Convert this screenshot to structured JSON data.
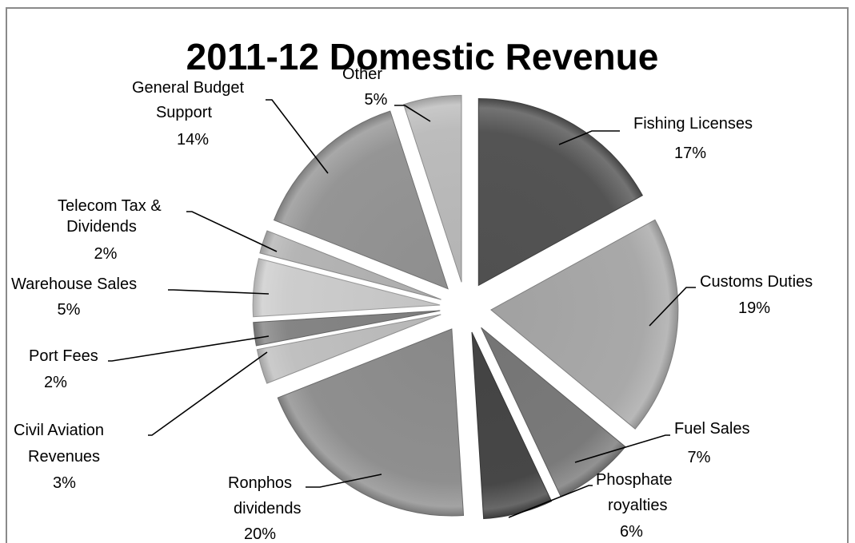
{
  "chart_data": {
    "type": "pie",
    "title": "2011-12 Domestic Revenue",
    "unit": "%",
    "exploded": true,
    "legend": "none",
    "slices": [
      {
        "label": "Fishing Licenses",
        "value": 17,
        "pct_label": "17%",
        "color": "#545454"
      },
      {
        "label": "Customs Duties",
        "value": 19,
        "pct_label": "19%",
        "color": "#a9a9a9"
      },
      {
        "label": "Fuel Sales",
        "value": 7,
        "pct_label": "7%",
        "color": "#7a7a7a"
      },
      {
        "label": "Phosphate royalties",
        "value": 6,
        "pct_label": "6%",
        "color": "#474747"
      },
      {
        "label": "Ronphos dividends",
        "value": 20,
        "pct_label": "20%",
        "color": "#8f8f8f"
      },
      {
        "label": "Civil Aviation Revenues",
        "value": 3,
        "pct_label": "3%",
        "color": "#c0c0c0"
      },
      {
        "label": "Port Fees",
        "value": 2,
        "pct_label": "2%",
        "color": "#858585"
      },
      {
        "label": "Warehouse Sales",
        "value": 5,
        "pct_label": "5%",
        "color": "#cdcdcd"
      },
      {
        "label": "Telecom Tax & Dividends",
        "value": 2,
        "pct_label": "2%",
        "color": "#b5b5b5"
      },
      {
        "label": "General Budget Support",
        "value": 14,
        "pct_label": "14%",
        "color": "#959595"
      },
      {
        "label": "Other",
        "value": 5,
        "pct_label": "5%",
        "color": "#bcbcbc"
      }
    ]
  }
}
